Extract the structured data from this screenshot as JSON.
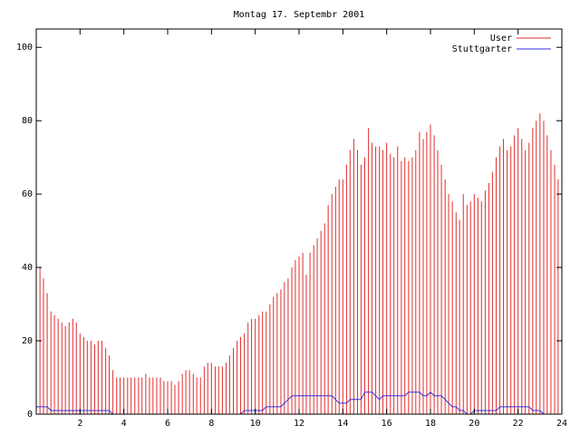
{
  "chart_data": {
    "type": "impulses",
    "title": "Montag 17. Septembr 2001",
    "x": [
      0,
      0.17,
      0.33,
      0.5,
      0.67,
      0.83,
      1,
      1.17,
      1.33,
      1.5,
      1.67,
      1.83,
      2,
      2.17,
      2.33,
      2.5,
      2.67,
      2.83,
      3,
      3.17,
      3.33,
      3.5,
      3.67,
      3.83,
      4,
      4.17,
      4.33,
      4.5,
      4.67,
      4.83,
      5,
      5.17,
      5.33,
      5.5,
      5.67,
      5.83,
      6,
      6.17,
      6.33,
      6.5,
      6.67,
      6.83,
      7,
      7.17,
      7.33,
      7.5,
      7.67,
      7.83,
      8,
      8.17,
      8.33,
      8.5,
      8.67,
      8.83,
      9,
      9.17,
      9.33,
      9.5,
      9.67,
      9.83,
      10,
      10.17,
      10.33,
      10.5,
      10.67,
      10.83,
      11,
      11.17,
      11.33,
      11.5,
      11.67,
      11.83,
      12,
      12.17,
      12.33,
      12.5,
      12.67,
      12.83,
      13,
      13.17,
      13.33,
      13.5,
      13.67,
      13.83,
      14,
      14.17,
      14.33,
      14.5,
      14.67,
      14.83,
      15,
      15.17,
      15.33,
      15.5,
      15.67,
      15.83,
      16,
      16.17,
      16.33,
      16.5,
      16.67,
      16.83,
      17,
      17.17,
      17.33,
      17.5,
      17.67,
      17.83,
      18,
      18.17,
      18.33,
      18.5,
      18.67,
      18.83,
      19,
      19.17,
      19.33,
      19.5,
      19.67,
      19.83,
      20,
      20.17,
      20.33,
      20.5,
      20.67,
      20.83,
      21,
      21.17,
      21.33,
      21.5,
      21.67,
      21.83,
      22,
      22.17,
      22.33,
      22.5,
      22.67,
      22.83,
      23,
      23.17,
      23.33,
      23.5,
      23.67,
      23.83
    ],
    "series": [
      {
        "name": "User",
        "color": "#e03030",
        "style": "impulses",
        "values": [
          45,
          40,
          37,
          33,
          28,
          27,
          26,
          25,
          24,
          25,
          26,
          25,
          22,
          21,
          20,
          20,
          19,
          20,
          20,
          18,
          16,
          12,
          10,
          10,
          10,
          10,
          10,
          10,
          10,
          10,
          11,
          10,
          10,
          10,
          10,
          9,
          9,
          9,
          8,
          9,
          11,
          12,
          12,
          11,
          10,
          10,
          13,
          14,
          14,
          13,
          13,
          13,
          14,
          16,
          18,
          20,
          21,
          22,
          25,
          26,
          26,
          27,
          28,
          28,
          30,
          32,
          33,
          34,
          36,
          37,
          40,
          42,
          43,
          44,
          38,
          44,
          46,
          48,
          50,
          52,
          57,
          60,
          62,
          64,
          64,
          68,
          72,
          75,
          72,
          68,
          70,
          78,
          74,
          73,
          73,
          72,
          74,
          71,
          70,
          73,
          69,
          70,
          69,
          70,
          72,
          77,
          75,
          77,
          79,
          76,
          72,
          68,
          64,
          60,
          58,
          55,
          53,
          60,
          57,
          58,
          60,
          59,
          58,
          61,
          63,
          66,
          70,
          73,
          75,
          72,
          73,
          76,
          78,
          75,
          72,
          74,
          78,
          80,
          82,
          80,
          76,
          72,
          68,
          64
        ]
      },
      {
        "name": "Stuttgarter",
        "color": "#3030e0",
        "style": "line",
        "values": [
          2,
          2,
          2,
          2,
          1,
          1,
          1,
          1,
          1,
          1,
          1,
          1,
          1,
          1,
          1,
          1,
          1,
          1,
          1,
          1,
          1,
          0,
          0,
          0,
          0,
          0,
          0,
          0,
          0,
          0,
          0,
          0,
          0,
          0,
          0,
          0,
          0,
          0,
          0,
          0,
          0,
          0,
          0,
          0,
          0,
          0,
          0,
          0,
          0,
          0,
          0,
          0,
          0,
          0,
          0,
          0,
          0,
          1,
          1,
          1,
          1,
          1,
          1,
          2,
          2,
          2,
          2,
          2,
          3,
          4,
          5,
          5,
          5,
          5,
          5,
          5,
          5,
          5,
          5,
          5,
          5,
          5,
          4,
          3,
          3,
          3,
          4,
          4,
          4,
          4,
          6,
          6,
          6,
          5,
          4,
          5,
          5,
          5,
          5,
          5,
          5,
          5,
          6,
          6,
          6,
          6,
          5,
          5,
          6,
          5,
          5,
          5,
          4,
          3,
          2,
          2,
          1,
          1,
          0,
          0,
          1,
          1,
          1,
          1,
          1,
          1,
          1,
          2,
          2,
          2,
          2,
          2,
          2,
          2,
          2,
          2,
          1,
          1,
          1,
          0,
          0,
          0,
          0,
          0
        ]
      }
    ],
    "xlim": [
      0,
      24
    ],
    "xticks": [
      2,
      4,
      6,
      8,
      10,
      12,
      14,
      16,
      18,
      20,
      22,
      24
    ],
    "ylim": [
      0,
      105
    ],
    "yticks": [
      0,
      20,
      40,
      60,
      80,
      100
    ],
    "legend": "top-right"
  }
}
